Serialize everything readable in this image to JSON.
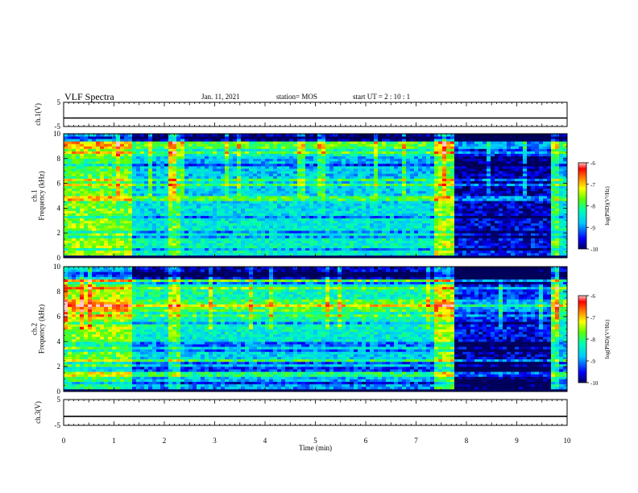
{
  "header": {
    "title": "VLF Spectra",
    "date": "Jan. 11, 2021",
    "station": "station= MOS",
    "start": "start UT =  2 : 10 : 1"
  },
  "chart_data": [
    {
      "type": "line",
      "panel": "ch1-voltage",
      "ylabel": "ch.1(V)",
      "ylim": [
        -5,
        5
      ],
      "y_ticks": [
        "5",
        "-5"
      ],
      "xlim": [
        0,
        10
      ],
      "series": [
        {
          "x": [
            0,
            10
          ],
          "values": [
            -1.5,
            -1.5
          ]
        }
      ]
    },
    {
      "type": "heatmap",
      "panel": "ch1-spectrogram",
      "ylabel": "ch.1\nFrequency (kHz)",
      "ylim": [
        0,
        10
      ],
      "y_ticks": [
        "0",
        "2",
        "4",
        "6",
        "8",
        "10"
      ],
      "xlim": [
        0,
        10
      ],
      "colorbar": {
        "label": "log(PSD)(V²/Hz)",
        "range": [
          -10,
          -6
        ],
        "ticks": [
          "-6",
          "-7",
          "-8",
          "-9",
          "-10"
        ]
      }
    },
    {
      "type": "heatmap",
      "panel": "ch2-spectrogram",
      "ylabel": "ch.2\nFrequency (kHz)",
      "ylim": [
        0,
        10
      ],
      "y_ticks": [
        "0",
        "2",
        "4",
        "6",
        "8",
        "10"
      ],
      "xlim": [
        0,
        10
      ],
      "colorbar": {
        "label": "log(PSD)(V²/Hz)",
        "range": [
          -10,
          -6
        ],
        "ticks": [
          "-6",
          "-7",
          "-8",
          "-9",
          "-10"
        ]
      }
    },
    {
      "type": "line",
      "panel": "ch3-voltage",
      "ylabel": "ch.3(V)",
      "ylim": [
        -5,
        5
      ],
      "y_ticks": [
        "5",
        "-5"
      ],
      "xlim": [
        0,
        10
      ],
      "x_ticks": [
        "0",
        "1",
        "2",
        "3",
        "4",
        "5",
        "6",
        "7",
        "8",
        "9",
        "10"
      ],
      "xlabel": "Time (min)",
      "series": [
        {
          "x": [
            0,
            10
          ],
          "values": [
            -1.5,
            -1.5
          ]
        }
      ]
    }
  ],
  "colors": {
    "background": "#ffffff",
    "axes": "#000000",
    "colormap": [
      "#000080",
      "#0000ff",
      "#00c0ff",
      "#00ffb0",
      "#60ff00",
      "#ffff00",
      "#ff8000",
      "#ff0000",
      "#ffc0c0"
    ]
  }
}
